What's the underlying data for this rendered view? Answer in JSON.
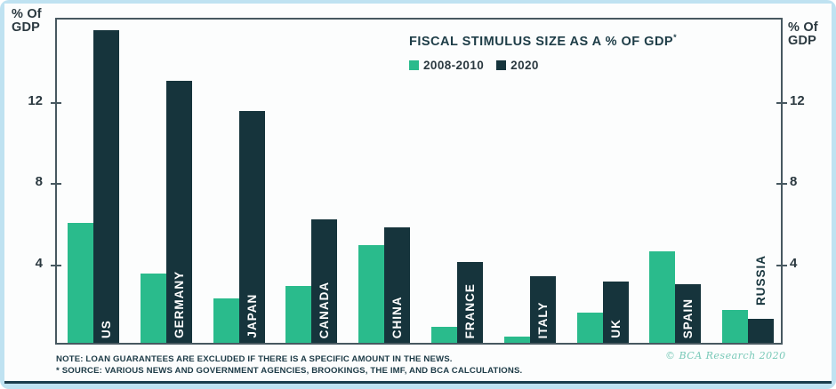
{
  "chart_data": {
    "type": "bar",
    "title": "FISCAL STIMULUS SIZE AS A % OF GDP",
    "footnote_marker": "*",
    "categories": [
      "US",
      "GERMANY",
      "JAPAN",
      "CANADA",
      "CHINA",
      "FRANCE",
      "ITALY",
      "UK",
      "SPAIN",
      "RUSSIA"
    ],
    "series": [
      {
        "name": "2008-2010",
        "color": "#2abb8c",
        "values": [
          5.9,
          3.4,
          2.2,
          2.8,
          4.8,
          0.8,
          0.3,
          1.5,
          4.5,
          1.6
        ]
      },
      {
        "name": "2020",
        "color": "#16343c",
        "values": [
          15.4,
          12.9,
          11.4,
          6.1,
          5.7,
          4.0,
          3.3,
          3.0,
          2.9,
          1.2
        ]
      }
    ],
    "ylabel": "% Of GDP",
    "ylabel_lines": [
      "% Of",
      "GDP"
    ],
    "yticks": [
      4,
      8,
      12
    ],
    "ylim": [
      0,
      16.1
    ],
    "grid": false,
    "legend_position": "top-right-inside",
    "bar_label_placement": "vertical inside 2020 bar, white; outside above bars when bar too short (RUSSIA)"
  },
  "notes": {
    "line1": "NOTE: LOAN GUARANTEES ARE EXCLUDED IF THERE IS A SPECIFIC AMOUNT IN THE NEWS.",
    "line2": "* SOURCE: VARIOUS NEWS AND GOVERNMENT AGENCIES, BROOKINGS, THE IMF, AND BCA CALCULATIONS."
  },
  "copyright": "© BCA Research 2020",
  "colors": {
    "series_2008_2010": "#2abb8c",
    "series_2020": "#16343c",
    "plot_border": "#475860",
    "text_navy": "#1e3d47",
    "frame_blue": "#bfe2f1",
    "bottom_line": "#1b3d4c",
    "copyright_teal": "#79c9b8"
  }
}
